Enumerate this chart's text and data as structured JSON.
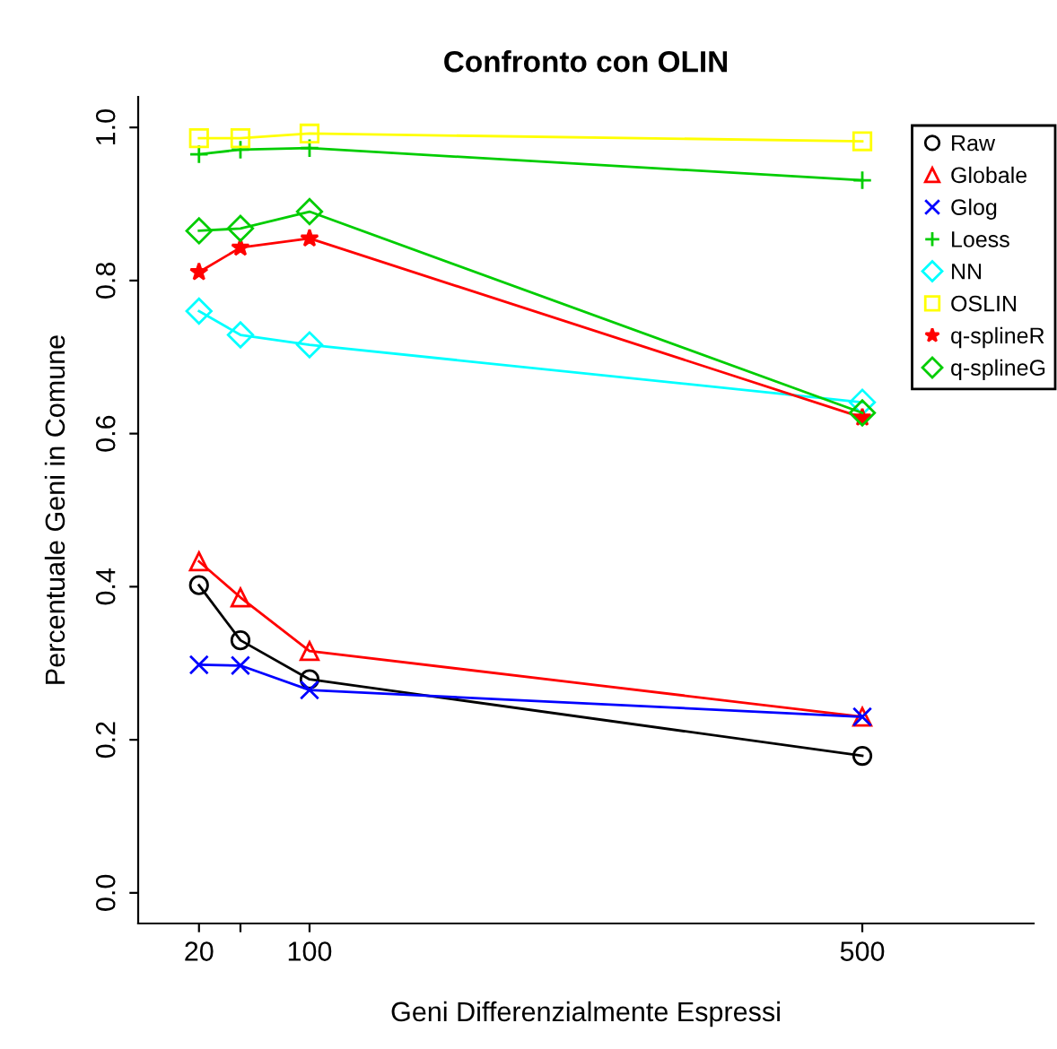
{
  "chart_data": {
    "type": "line",
    "title": "Confronto con OLIN",
    "xlabel": "Geni Differenzialmente Espressi",
    "ylabel": "Percentuale Geni in Comune",
    "x": [
      20,
      50,
      100,
      500
    ],
    "xlim": [
      -24,
      624
    ],
    "xticks": [
      20,
      {
        "value": 50,
        "label": null
      },
      100,
      500
    ],
    "ylim": [
      -0.04,
      1.04
    ],
    "yticks": [
      {
        "value": 0,
        "label": "0.0"
      },
      0.2,
      0.4,
      0.6,
      0.8,
      {
        "value": 1,
        "label": "1.0"
      }
    ],
    "grid": false,
    "legend": "top right",
    "series": [
      {
        "name": "Raw",
        "color": "#000000",
        "marker": "circle",
        "values": [
          0.402,
          0.33,
          0.279,
          0.179
        ]
      },
      {
        "name": "Globale",
        "color": "#ff0000",
        "marker": "triangle",
        "values": [
          0.433,
          0.386,
          0.316,
          0.23
        ]
      },
      {
        "name": "Glog",
        "color": "#0000ff",
        "marker": "cross",
        "values": [
          0.298,
          0.297,
          0.265,
          0.23
        ]
      },
      {
        "name": "Loess",
        "color": "#00cd00",
        "marker": "plus",
        "values": [
          0.965,
          0.971,
          0.973,
          0.931
        ]
      },
      {
        "name": "NN",
        "color": "#00ffff",
        "marker": "diamond",
        "values": [
          0.76,
          0.729,
          0.716,
          0.641
        ]
      },
      {
        "name": "OSLIN",
        "color": "#ffff00",
        "marker": "square",
        "values": [
          0.986,
          0.986,
          0.992,
          0.982
        ]
      },
      {
        "name": "q-splineR",
        "color": "#ff0000",
        "marker": "star",
        "values": [
          0.811,
          0.843,
          0.855,
          0.621
        ]
      },
      {
        "name": "q-splineG",
        "color": "#00cd00",
        "marker": "diamond",
        "values": [
          0.865,
          0.868,
          0.89,
          0.627
        ]
      }
    ]
  }
}
